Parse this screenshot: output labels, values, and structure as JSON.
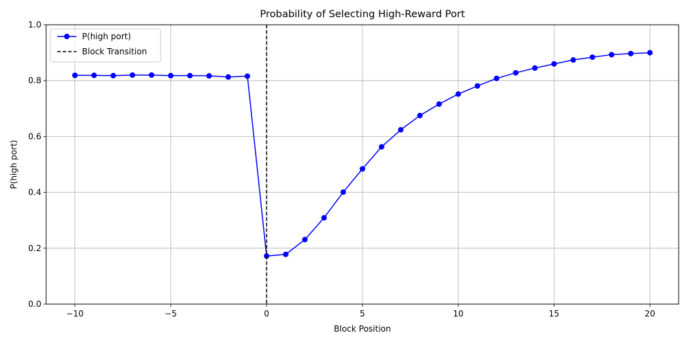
{
  "chart_data": {
    "type": "line",
    "title": "Probability of Selecting High-Reward Port",
    "xlabel": "Block Position",
    "ylabel": "P(high port)",
    "xlim": [
      -11.5,
      21.5
    ],
    "ylim": [
      0.0,
      1.0
    ],
    "xticks": [
      -10,
      -5,
      0,
      5,
      10,
      15,
      20
    ],
    "xtick_labels": [
      "−10",
      "−5",
      "0",
      "5",
      "10",
      "15",
      "20"
    ],
    "yticks": [
      0.0,
      0.2,
      0.4,
      0.6,
      0.8,
      1.0
    ],
    "ytick_labels": [
      "0.0",
      "0.2",
      "0.4",
      "0.6",
      "0.8",
      "1.0"
    ],
    "grid": true,
    "legend_position": "top-left",
    "series": [
      {
        "name": "P(high port)",
        "color": "#0000ff",
        "marker": "circle",
        "x": [
          -10,
          -9,
          -8,
          -7,
          -6,
          -5,
          -4,
          -3,
          -2,
          -1,
          0,
          1,
          2,
          3,
          4,
          5,
          6,
          7,
          8,
          9,
          10,
          11,
          12,
          13,
          14,
          15,
          16,
          17,
          18,
          19,
          20
        ],
        "y": [
          0.819,
          0.819,
          0.818,
          0.82,
          0.82,
          0.818,
          0.818,
          0.817,
          0.813,
          0.816,
          0.172,
          0.178,
          0.231,
          0.309,
          0.401,
          0.484,
          0.563,
          0.624,
          0.675,
          0.716,
          0.752,
          0.781,
          0.808,
          0.828,
          0.845,
          0.86,
          0.874,
          0.884,
          0.893,
          0.897,
          0.9
        ]
      }
    ],
    "reference_lines": [
      {
        "name": "Block Transition",
        "orientation": "vertical",
        "x": 0,
        "color": "#000000",
        "style": "dashed"
      }
    ]
  }
}
